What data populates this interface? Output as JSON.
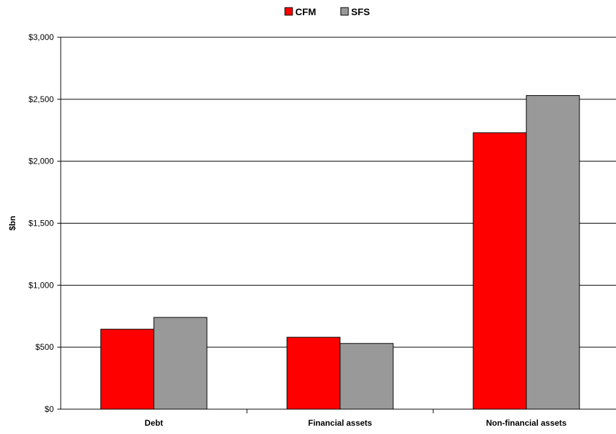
{
  "chart_data": {
    "type": "bar",
    "title": "",
    "xlabel": "",
    "ylabel": "$bn",
    "ylim": [
      0,
      3000
    ],
    "yticks": [
      0,
      500,
      1000,
      1500,
      2000,
      2500,
      3000
    ],
    "ytick_labels": [
      "$0",
      "$500",
      "$1,000",
      "$1,500",
      "$2,000",
      "$2,500",
      "$3,000"
    ],
    "grid": true,
    "legend_position": "top-center",
    "categories": [
      "Debt",
      "Financial assets",
      "Non-financial assets"
    ],
    "series": [
      {
        "name": "CFM",
        "color": "#ff0000",
        "values": [
          645,
          580,
          2230
        ]
      },
      {
        "name": "SFS",
        "color": "#999999",
        "values": [
          740,
          530,
          2530
        ]
      }
    ]
  }
}
